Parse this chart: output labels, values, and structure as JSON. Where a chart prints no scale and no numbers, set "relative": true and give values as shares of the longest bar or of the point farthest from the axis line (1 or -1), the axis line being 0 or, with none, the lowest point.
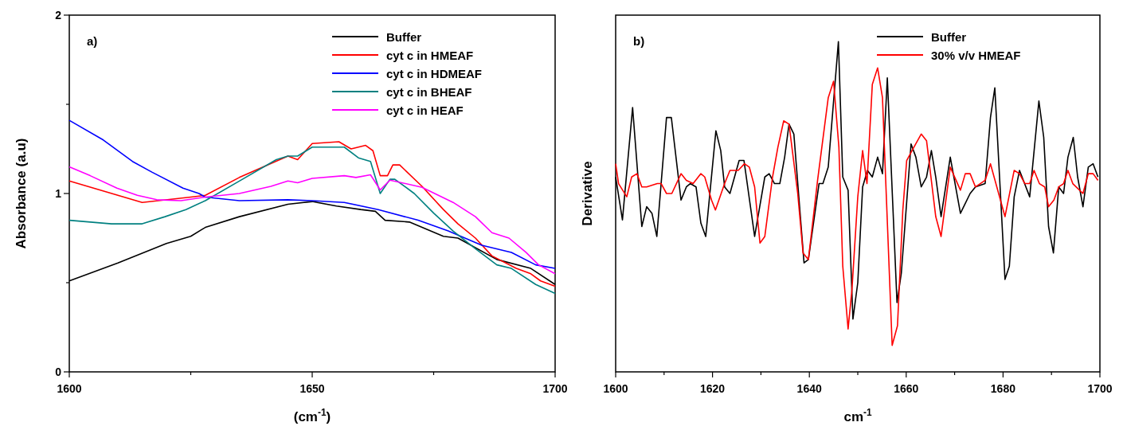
{
  "chart_data": [
    {
      "type": "line",
      "xlabel": "(cm$^{-1}$)",
      "ylabel": "Absorbance (a.u)",
      "annotations": [
        "a)"
      ],
      "xlim": [
        1600,
        1700
      ],
      "xticks": [
        1600,
        {
          "value": 1625,
          "label": null
        },
        1650,
        {
          "value": 1675,
          "label": null
        },
        1700
      ],
      "ylim": [
        0,
        2
      ],
      "yticks": [
        0,
        {
          "value": 0.5,
          "label": null
        },
        1,
        {
          "value": 1.5,
          "label": null
        },
        2
      ],
      "legend": "top right",
      "grid": false,
      "series": [
        {
          "name": "Buffer",
          "color": "#000000",
          "x": [
            1600,
            1610,
            1620,
            1625,
            1628,
            1635,
            1645,
            1650,
            1655,
            1660,
            1663,
            1665,
            1670,
            1677,
            1680,
            1688,
            1695,
            1700
          ],
          "values": [
            0.51,
            0.61,
            0.72,
            0.76,
            0.81,
            0.87,
            0.94,
            0.955,
            0.93,
            0.91,
            0.9,
            0.85,
            0.84,
            0.76,
            0.75,
            0.63,
            0.58,
            0.49
          ]
        },
        {
          "name": "cyt c in HMEAF",
          "color": "#ff0000",
          "x": [
            1600,
            1615,
            1625,
            1628,
            1635,
            1645,
            1647,
            1650,
            1655.5,
            1658,
            1661,
            1662.5,
            1664,
            1665.5,
            1666.6,
            1668,
            1672.6,
            1677,
            1680,
            1683.6,
            1687,
            1692,
            1695,
            1697,
            1700
          ],
          "values": [
            1.07,
            0.95,
            0.98,
            0.99,
            1.09,
            1.21,
            1.19,
            1.28,
            1.29,
            1.25,
            1.27,
            1.24,
            1.1,
            1.1,
            1.16,
            1.16,
            1.04,
            0.91,
            0.83,
            0.75,
            0.65,
            0.58,
            0.55,
            0.51,
            0.48
          ]
        },
        {
          "name": "cyt c in HDMEAF",
          "color": "#0000ff",
          "x": [
            1600,
            1607,
            1613,
            1617,
            1623.4,
            1626.7,
            1628,
            1635,
            1645,
            1650,
            1656.6,
            1663.6,
            1671.8,
            1678,
            1684.9,
            1691,
            1696,
            1700
          ],
          "values": [
            1.41,
            1.3,
            1.18,
            1.12,
            1.03,
            1,
            0.98,
            0.96,
            0.965,
            0.96,
            0.95,
            0.91,
            0.85,
            0.79,
            0.71,
            0.67,
            0.6,
            0.58
          ]
        },
        {
          "name": "cyt c in BHEAF",
          "color": "#008080",
          "x": [
            1600,
            1608.7,
            1615,
            1619.7,
            1624,
            1628,
            1635,
            1642.6,
            1645,
            1647,
            1650,
            1656.6,
            1659.5,
            1662,
            1664,
            1666,
            1667,
            1671,
            1675,
            1679,
            1683.6,
            1688,
            1691,
            1696,
            1700
          ],
          "values": [
            0.85,
            0.83,
            0.83,
            0.87,
            0.91,
            0.96,
            1.07,
            1.19,
            1.21,
            1.21,
            1.26,
            1.26,
            1.2,
            1.18,
            1,
            1.08,
            1.08,
            1,
            0.89,
            0.79,
            0.69,
            0.6,
            0.58,
            0.49,
            0.44
          ]
        },
        {
          "name": "cyt c in HEAF",
          "color": "#ff00ff",
          "x": [
            1600,
            1604.3,
            1609.8,
            1614,
            1618,
            1623,
            1628,
            1635,
            1641.5,
            1645,
            1647,
            1650,
            1656.6,
            1659,
            1662,
            1664,
            1666,
            1672.6,
            1679,
            1683.6,
            1687,
            1690.5,
            1694,
            1696.6,
            1700
          ],
          "values": [
            1.15,
            1.1,
            1.03,
            0.99,
            0.965,
            0.96,
            0.98,
            1,
            1.04,
            1.07,
            1.06,
            1.085,
            1.1,
            1.09,
            1.105,
            1.02,
            1.075,
            1.035,
            0.95,
            0.87,
            0.78,
            0.75,
            0.67,
            0.6,
            0.55
          ]
        }
      ]
    },
    {
      "type": "line",
      "xlabel": "cm$^{-1}$",
      "ylabel": "Derivative",
      "annotations": [
        "b)"
      ],
      "relative": true,
      "xlim": [
        1600,
        1700
      ],
      "xticks": [
        1600,
        {
          "value": 1610,
          "label": null
        },
        1620,
        {
          "value": 1630,
          "label": null
        },
        1640,
        {
          "value": 1650,
          "label": null
        },
        1660,
        {
          "value": 1670,
          "label": null
        },
        1680,
        {
          "value": 1690,
          "label": null
        },
        1700
      ],
      "legend": "top right",
      "grid": false,
      "series": [
        {
          "name": "Buffer",
          "color": "#000000",
          "x": [
            1600,
            1601.4,
            1603.5,
            1605.4,
            1606.4,
            1607.5,
            1608.5,
            1610.5,
            1611.5,
            1613.5,
            1614.6,
            1615.4,
            1616.6,
            1617.6,
            1618.6,
            1620.7,
            1621.7,
            1622.5,
            1623.6,
            1625.5,
            1626.5,
            1628.7,
            1630.8,
            1631.7,
            1632.8,
            1633.9,
            1634.9,
            1635.8,
            1636.8,
            1638.9,
            1639.8,
            1642,
            1642.8,
            1643.9,
            1646,
            1646.9,
            1648,
            1649,
            1650,
            1651,
            1652,
            1653,
            1654.1,
            1655.1,
            1656.1,
            1658.1,
            1659,
            1661,
            1662,
            1663.1,
            1664.2,
            1665.2,
            1666.1,
            1667.2,
            1669.1,
            1671.2,
            1673.2,
            1674.3,
            1676.3,
            1677.4,
            1678.3,
            1680.4,
            1681.3,
            1682.3,
            1683.4,
            1685.5,
            1687.4,
            1688.4,
            1689.4,
            1690.4,
            1691.5,
            1692.5,
            1693.4,
            1694.5,
            1695.4,
            1696.5,
            1697.6,
            1698.6,
            1699.6
          ],
          "values": [
            0.59,
            0.46,
            0.8,
            0.44,
            0.5,
            0.48,
            0.41,
            0.77,
            0.77,
            0.52,
            0.56,
            0.57,
            0.56,
            0.45,
            0.41,
            0.73,
            0.67,
            0.56,
            0.54,
            0.64,
            0.64,
            0.41,
            0.59,
            0.6,
            0.57,
            0.57,
            0.65,
            0.75,
            0.72,
            0.33,
            0.34,
            0.57,
            0.57,
            0.62,
            1,
            0.59,
            0.55,
            0.16,
            0.27,
            0.56,
            0.61,
            0.59,
            0.65,
            0.6,
            0.89,
            0.21,
            0.3,
            0.69,
            0.65,
            0.56,
            0.59,
            0.67,
            0.59,
            0.47,
            0.65,
            0.48,
            0.54,
            0.56,
            0.57,
            0.77,
            0.86,
            0.28,
            0.32,
            0.53,
            0.61,
            0.53,
            0.82,
            0.71,
            0.44,
            0.36,
            0.56,
            0.54,
            0.65,
            0.71,
            0.59,
            0.5,
            0.62,
            0.63,
            0.59
          ]
        },
        {
          "name": "30% v/v HMEAF",
          "color": "#ff0000",
          "x": [
            1600,
            1600.6,
            1602.3,
            1603.3,
            1604.4,
            1605.4,
            1606.4,
            1608.6,
            1609.4,
            1610.5,
            1611.6,
            1613.5,
            1614.6,
            1616,
            1617.6,
            1618.4,
            1619.8,
            1620.6,
            1622.5,
            1623.6,
            1625.3,
            1626.6,
            1627.6,
            1628.7,
            1629.8,
            1630.8,
            1632.4,
            1633.5,
            1634.7,
            1635.8,
            1637.6,
            1638.7,
            1639.8,
            1641.7,
            1643.9,
            1645,
            1646.1,
            1646.9,
            1648,
            1648.8,
            1650,
            1651,
            1651.9,
            1653,
            1654.1,
            1655.1,
            1657.1,
            1658.2,
            1659.3,
            1660.1,
            1661.2,
            1663.1,
            1664.2,
            1666.1,
            1667.2,
            1669.1,
            1671.2,
            1672.2,
            1673.2,
            1674.3,
            1675.3,
            1676.3,
            1677.4,
            1680.4,
            1682.3,
            1683.4,
            1684.5,
            1685.5,
            1686.4,
            1687.5,
            1688.6,
            1689.4,
            1690.5,
            1691.5,
            1692.5,
            1693.4,
            1694.4,
            1696.5,
            1697.6,
            1698.6,
            1699.6
          ],
          "values": [
            0.63,
            0.57,
            0.53,
            0.59,
            0.6,
            0.56,
            0.56,
            0.57,
            0.57,
            0.54,
            0.54,
            0.6,
            0.58,
            0.57,
            0.6,
            0.59,
            0.52,
            0.49,
            0.57,
            0.61,
            0.61,
            0.63,
            0.62,
            0.56,
            0.39,
            0.41,
            0.59,
            0.68,
            0.76,
            0.75,
            0.54,
            0.36,
            0.34,
            0.58,
            0.83,
            0.88,
            0.68,
            0.32,
            0.13,
            0.25,
            0.53,
            0.67,
            0.57,
            0.87,
            0.92,
            0.83,
            0.08,
            0.14,
            0.49,
            0.64,
            0.67,
            0.72,
            0.7,
            0.47,
            0.41,
            0.62,
            0.55,
            0.6,
            0.6,
            0.56,
            0.57,
            0.58,
            0.63,
            0.47,
            0.61,
            0.6,
            0.57,
            0.57,
            0.61,
            0.57,
            0.56,
            0.5,
            0.52,
            0.56,
            0.57,
            0.61,
            0.57,
            0.54,
            0.6,
            0.6,
            0.58
          ]
        }
      ]
    }
  ]
}
